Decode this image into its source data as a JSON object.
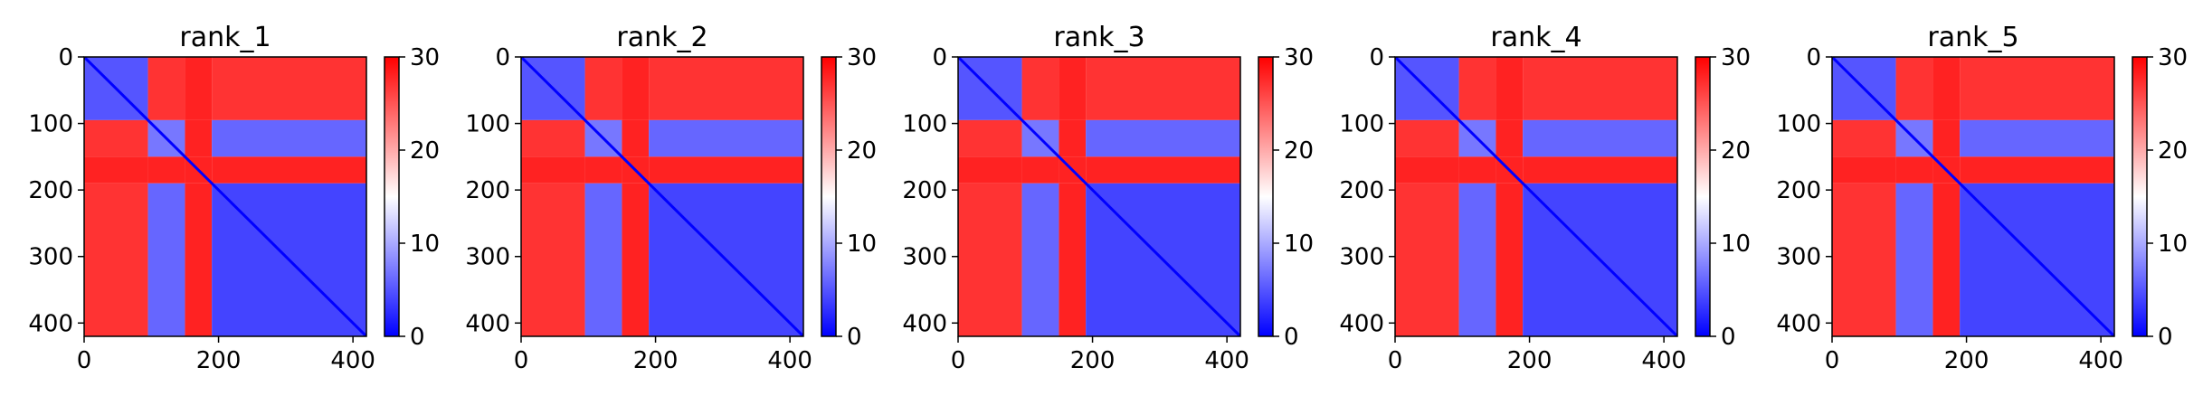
{
  "chart_data": [
    {
      "type": "heatmap",
      "title": "rank_1",
      "xlim": [
        0,
        420
      ],
      "ylim": [
        420,
        0
      ],
      "xticks": [
        "0",
        "200",
        "400"
      ],
      "yticks": [
        "0",
        "100",
        "200",
        "300",
        "400"
      ],
      "colorbar": {
        "min": 0,
        "max": 30,
        "ticks": [
          "0",
          "10",
          "20",
          "30"
        ],
        "colors": [
          "#0000ff",
          "#ffffff",
          "#ff0000"
        ]
      },
      "blocks": [
        {
          "start": 0,
          "end": 95,
          "value": 5
        },
        {
          "start": 95,
          "end": 150,
          "value": 7
        },
        {
          "start": 150,
          "end": 190,
          "value": 28
        },
        {
          "start": 190,
          "end": 420,
          "value": 4
        }
      ]
    },
    {
      "type": "heatmap",
      "title": "rank_2",
      "xlim": [
        0,
        420
      ],
      "ylim": [
        420,
        0
      ],
      "xticks": [
        "0",
        "200",
        "400"
      ],
      "yticks": [
        "0",
        "100",
        "200",
        "300",
        "400"
      ],
      "colorbar": {
        "min": 0,
        "max": 30,
        "ticks": [
          "0",
          "10",
          "20",
          "30"
        ],
        "colors": [
          "#0000ff",
          "#ffffff",
          "#ff0000"
        ]
      },
      "blocks": [
        {
          "start": 0,
          "end": 95,
          "value": 5
        },
        {
          "start": 95,
          "end": 150,
          "value": 7
        },
        {
          "start": 150,
          "end": 190,
          "value": 28
        },
        {
          "start": 190,
          "end": 420,
          "value": 4
        }
      ]
    },
    {
      "type": "heatmap",
      "title": "rank_3",
      "xlim": [
        0,
        420
      ],
      "ylim": [
        420,
        0
      ],
      "xticks": [
        "0",
        "200",
        "400"
      ],
      "yticks": [
        "0",
        "100",
        "200",
        "300",
        "400"
      ],
      "colorbar": {
        "min": 0,
        "max": 30,
        "ticks": [
          "0",
          "10",
          "20",
          "30"
        ],
        "colors": [
          "#0000ff",
          "#ffffff",
          "#ff0000"
        ]
      },
      "blocks": [
        {
          "start": 0,
          "end": 95,
          "value": 5
        },
        {
          "start": 95,
          "end": 150,
          "value": 7
        },
        {
          "start": 150,
          "end": 190,
          "value": 28
        },
        {
          "start": 190,
          "end": 420,
          "value": 4
        }
      ]
    },
    {
      "type": "heatmap",
      "title": "rank_4",
      "xlim": [
        0,
        420
      ],
      "ylim": [
        420,
        0
      ],
      "xticks": [
        "0",
        "200",
        "400"
      ],
      "yticks": [
        "0",
        "100",
        "200",
        "300",
        "400"
      ],
      "colorbar": {
        "min": 0,
        "max": 30,
        "ticks": [
          "0",
          "10",
          "20",
          "30"
        ],
        "colors": [
          "#0000ff",
          "#ffffff",
          "#ff0000"
        ]
      },
      "blocks": [
        {
          "start": 0,
          "end": 95,
          "value": 5
        },
        {
          "start": 95,
          "end": 150,
          "value": 7
        },
        {
          "start": 150,
          "end": 190,
          "value": 28
        },
        {
          "start": 190,
          "end": 420,
          "value": 4
        }
      ]
    },
    {
      "type": "heatmap",
      "title": "rank_5",
      "xlim": [
        0,
        420
      ],
      "ylim": [
        420,
        0
      ],
      "xticks": [
        "0",
        "200",
        "400"
      ],
      "yticks": [
        "0",
        "100",
        "200",
        "300",
        "400"
      ],
      "colorbar": {
        "min": 0,
        "max": 30,
        "ticks": [
          "0",
          "10",
          "20",
          "30"
        ],
        "colors": [
          "#0000ff",
          "#ffffff",
          "#ff0000"
        ]
      },
      "blocks": [
        {
          "start": 0,
          "end": 95,
          "value": 5
        },
        {
          "start": 95,
          "end": 150,
          "value": 7
        },
        {
          "start": 150,
          "end": 190,
          "value": 28
        },
        {
          "start": 190,
          "end": 420,
          "value": 4
        }
      ]
    }
  ]
}
